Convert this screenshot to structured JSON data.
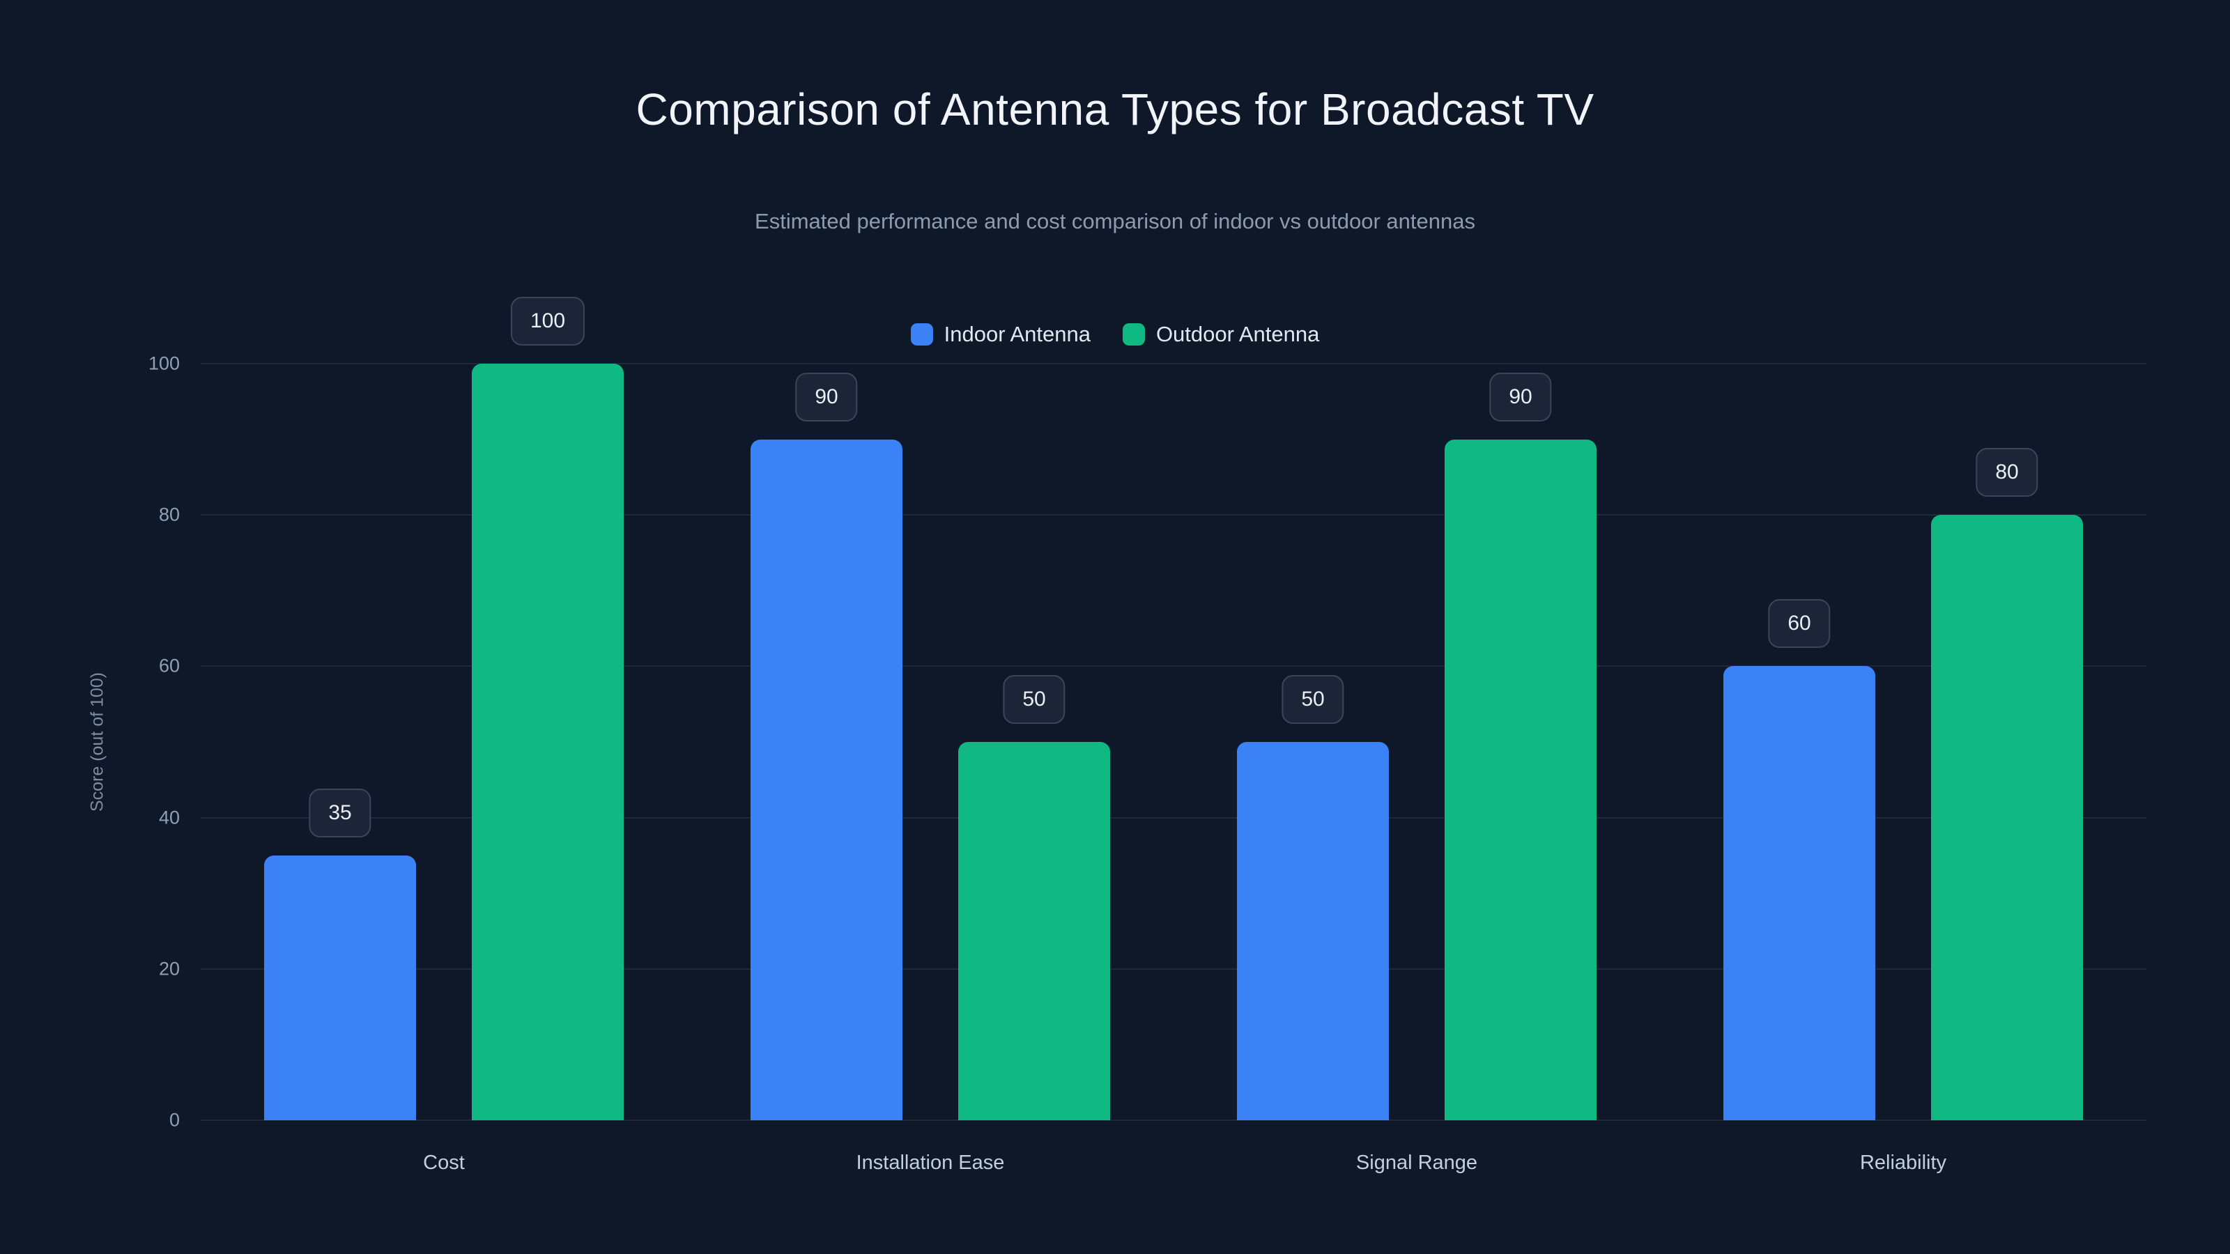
{
  "chart_data": {
    "type": "bar",
    "title": "Comparison of Antenna Types for Broadcast TV",
    "subtitle": "Estimated performance and cost comparison of indoor vs outdoor antennas",
    "ylabel": "Score (out of 100)",
    "xlabel": "",
    "categories": [
      "Cost",
      "Installation Ease",
      "Signal Range",
      "Reliability"
    ],
    "series": [
      {
        "name": "Indoor Antenna",
        "color": "#3b82f6",
        "values": [
          35,
          90,
          50,
          60
        ]
      },
      {
        "name": "Outdoor Antenna",
        "color": "#10b981",
        "values": [
          100,
          50,
          90,
          80
        ]
      }
    ],
    "yticks": [
      0,
      20,
      40,
      60,
      80,
      100
    ],
    "ylim": [
      0,
      100
    ],
    "grid": true,
    "legend_position": "top",
    "show_value_labels": true,
    "colors": {
      "background": "#0e1829",
      "grid": "rgba(148,163,184,0.12)",
      "title_text": "#f1f5f9",
      "subtitle_text": "#8b9bb0",
      "tick_text": "#8ea0b5",
      "category_text": "#c3cfdd",
      "legend_text": "#e2e8f0",
      "axis_title_text": "#7d8ca0",
      "value_pill_bg": "#1b2537",
      "value_pill_border": "#3a4557",
      "value_pill_text": "#eaeff6"
    }
  }
}
